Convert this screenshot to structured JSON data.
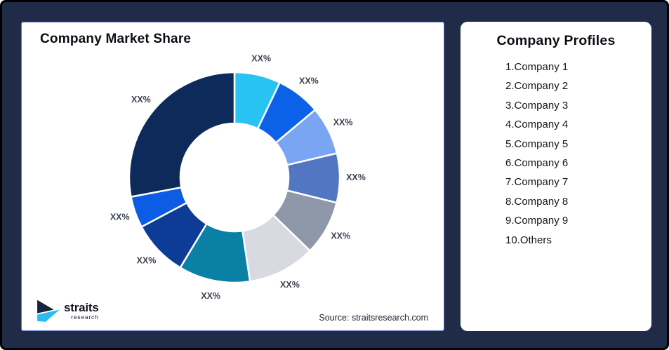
{
  "background": {
    "color": "#202b48",
    "border_color": "#000000"
  },
  "market_share_card": {
    "title": "Company Market Share",
    "source_text": "Source: straitsresearch.com",
    "border_color": "#6374c8",
    "logo": {
      "brand": "straits",
      "brand_sub": "research",
      "mark_navy": "#16243f",
      "mark_cyan": "#2bbcee"
    }
  },
  "profiles_card": {
    "title": "Company Profiles",
    "items": [
      "1.Company 1",
      "2.Company 2",
      "3.Company 3",
      "4.Company 4",
      "5.Company 5",
      "6.Company 6",
      "7.Company 7",
      "8.Company 8",
      "9.Company 9",
      "10.Others"
    ]
  },
  "chart_data": {
    "type": "pie",
    "subtype": "donut",
    "title": "Company Market Share",
    "legend_position": "none",
    "inner_radius_ratio": 0.51,
    "label_color": "#3d434e",
    "segments": [
      {
        "name": "donut-segment-1",
        "label": "XX%",
        "color": "#27c3f3",
        "start_deg": 0,
        "end_deg": 25.5,
        "share_pct_est": 7.1
      },
      {
        "name": "donut-segment-2",
        "label": "XX%",
        "color": "#0b62e9",
        "start_deg": 25.5,
        "end_deg": 50.0,
        "share_pct_est": 6.8
      },
      {
        "name": "donut-segment-3",
        "label": "XX%",
        "color": "#79a5f2",
        "start_deg": 50.0,
        "end_deg": 76.7,
        "share_pct_est": 7.4
      },
      {
        "name": "donut-segment-4",
        "label": "XX%",
        "color": "#5276c2",
        "start_deg": 76.7,
        "end_deg": 103.9,
        "share_pct_est": 7.6
      },
      {
        "name": "donut-segment-5",
        "label": "XX%",
        "color": "#8e98a9",
        "start_deg": 103.9,
        "end_deg": 134.2,
        "share_pct_est": 8.4
      },
      {
        "name": "donut-segment-6",
        "label": "XX%",
        "color": "#d7dae1",
        "start_deg": 134.2,
        "end_deg": 171.5,
        "share_pct_est": 10.4
      },
      {
        "name": "donut-segment-7",
        "label": "XX%",
        "color": "#0b80a5",
        "start_deg": 171.5,
        "end_deg": 211.0,
        "share_pct_est": 11.0
      },
      {
        "name": "donut-segment-8",
        "label": "XX%",
        "color": "#0d3c96",
        "start_deg": 211.0,
        "end_deg": 242.0,
        "share_pct_est": 8.6
      },
      {
        "name": "donut-segment-9",
        "label": "XX%",
        "color": "#0d5ce4",
        "start_deg": 242.0,
        "end_deg": 259.4,
        "share_pct_est": 4.8
      },
      {
        "name": "donut-segment-10",
        "label": "XX%",
        "color": "#0d2a5b",
        "start_deg": 259.4,
        "end_deg": 360.0,
        "share_pct_est": 28.0
      }
    ]
  }
}
